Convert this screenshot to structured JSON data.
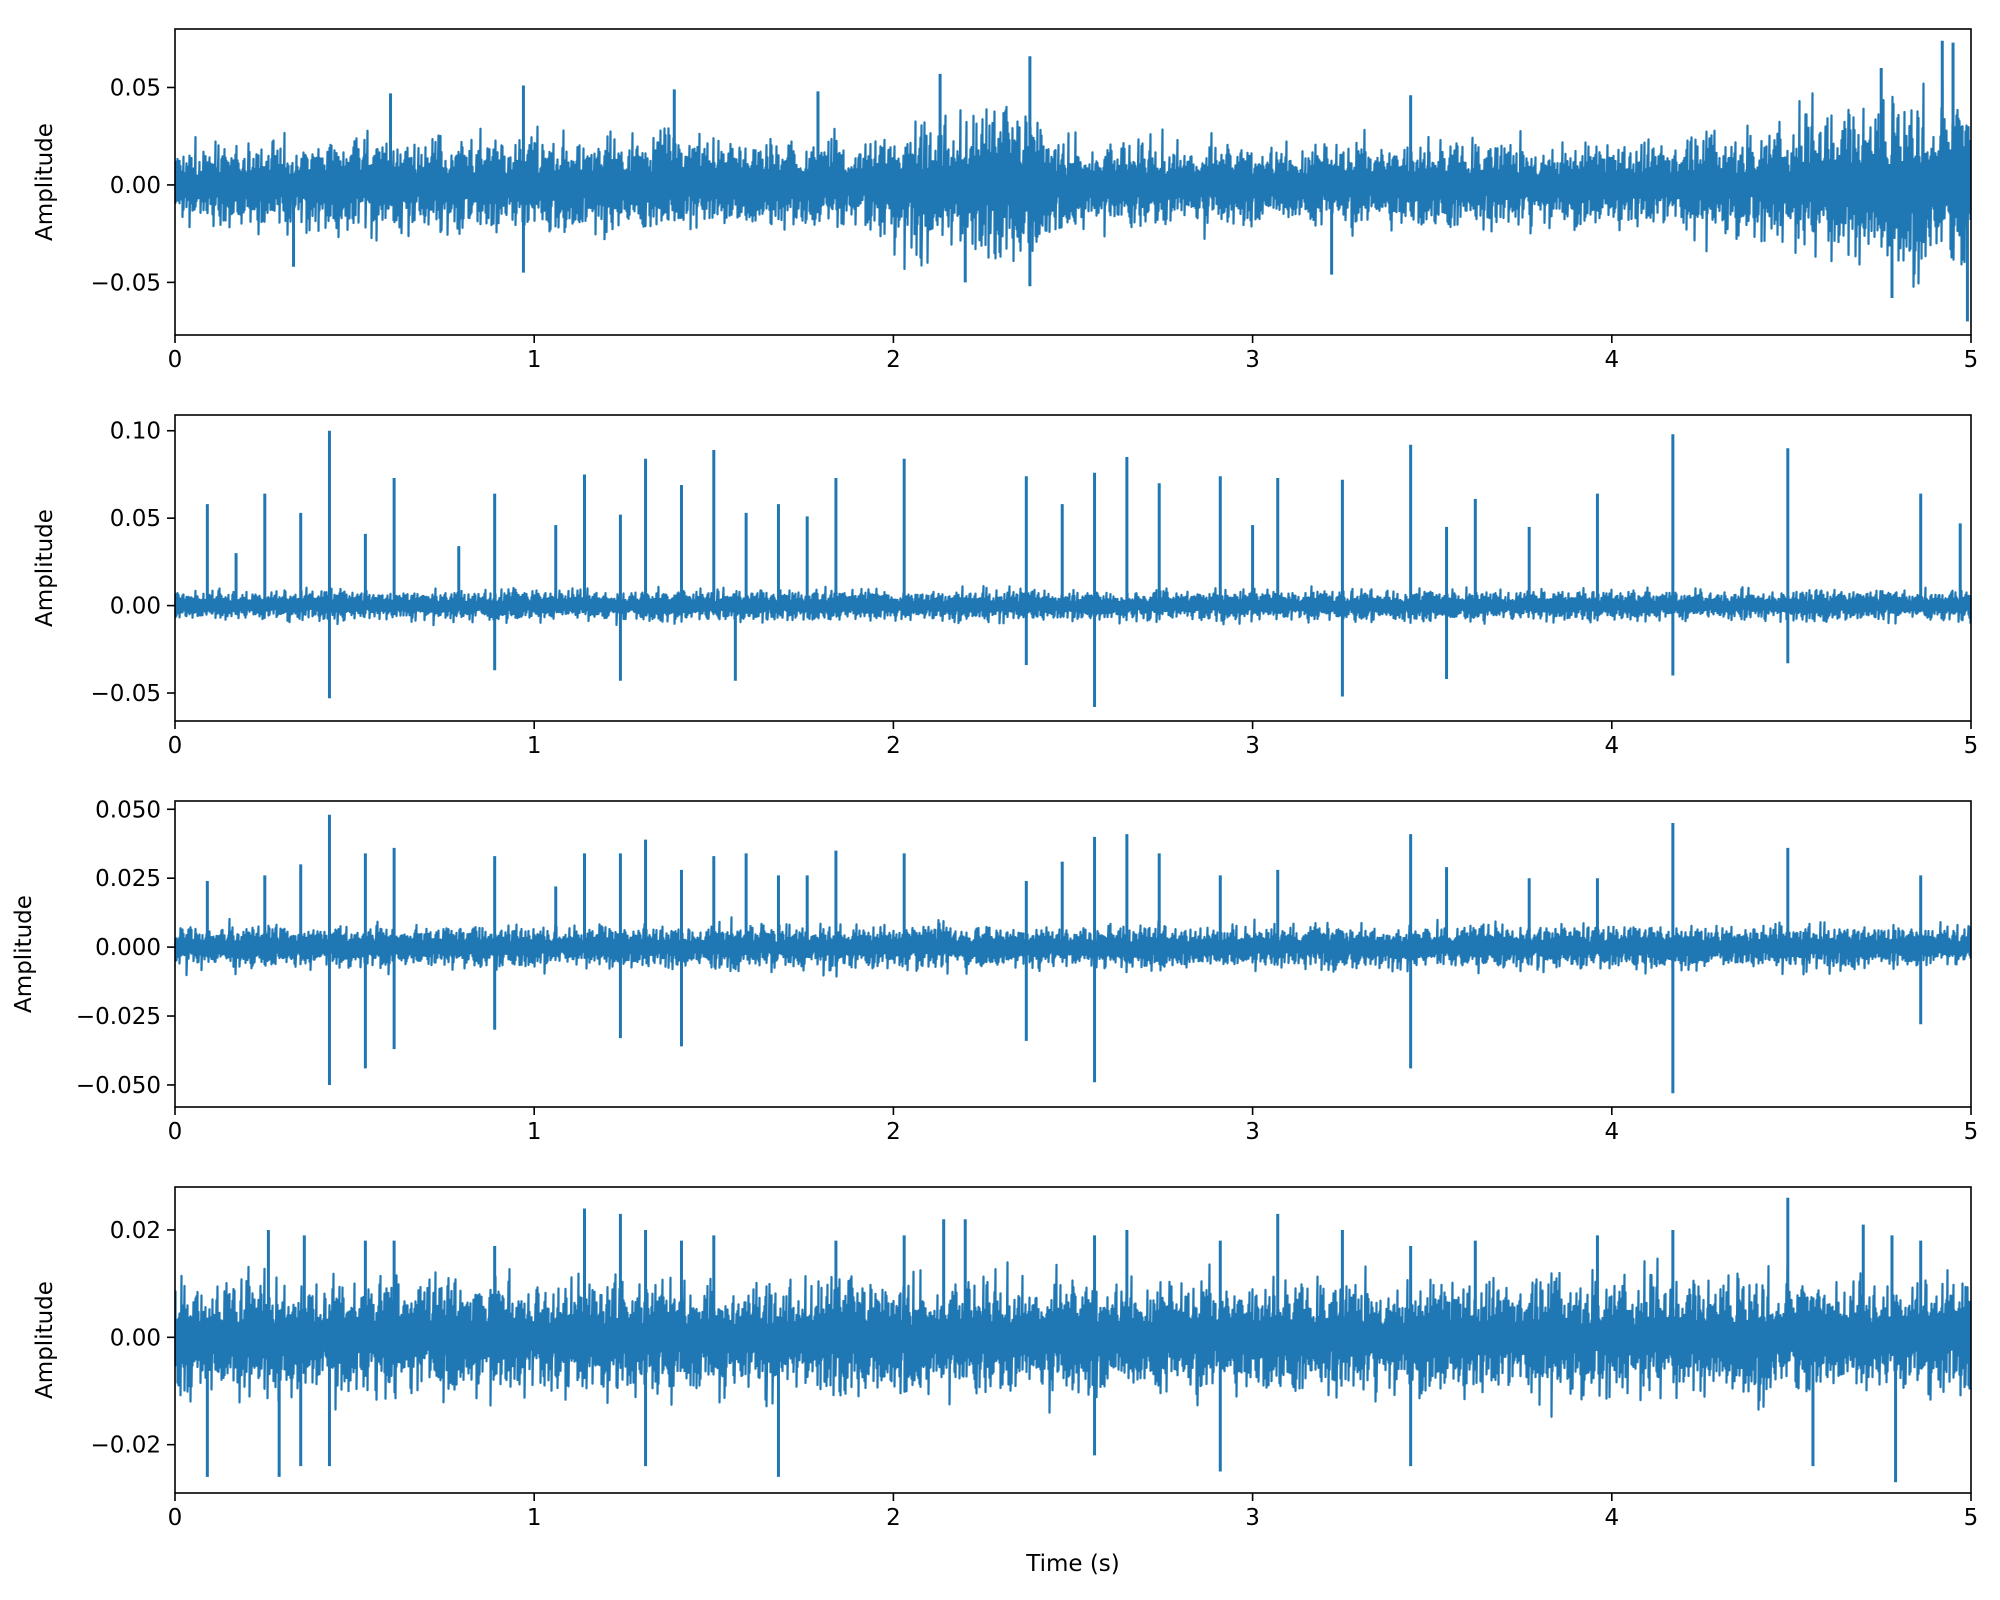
{
  "chart_data": [
    {
      "type": "line",
      "xlabel": "",
      "ylabel": "Amplitude",
      "xlim": [
        0,
        5
      ],
      "ylim": [
        -0.077,
        0.08
      ],
      "x_ticks": [
        "0",
        "1",
        "2",
        "3",
        "4",
        "5"
      ],
      "y_ticks": [
        {
          "value": -0.05,
          "label": "−0.05"
        },
        {
          "value": 0.0,
          "label": "0.00"
        },
        {
          "value": 0.05,
          "label": "0.05"
        }
      ],
      "color": "#1f77b4",
      "noise_envelope": [
        [
          0.0,
          0.02
        ],
        [
          0.5,
          0.024
        ],
        [
          1.0,
          0.026
        ],
        [
          1.5,
          0.025
        ],
        [
          1.95,
          0.024
        ],
        [
          2.05,
          0.035
        ],
        [
          2.4,
          0.04
        ],
        [
          2.45,
          0.024
        ],
        [
          3.0,
          0.021
        ],
        [
          3.5,
          0.024
        ],
        [
          4.0,
          0.022
        ],
        [
          4.4,
          0.027
        ],
        [
          4.65,
          0.04
        ],
        [
          5.0,
          0.045
        ]
      ],
      "peaks": [
        [
          0.6,
          0.047
        ],
        [
          0.97,
          0.051
        ],
        [
          1.39,
          0.049
        ],
        [
          1.79,
          0.048
        ],
        [
          2.13,
          0.057
        ],
        [
          2.38,
          0.066
        ],
        [
          3.44,
          0.046
        ],
        [
          4.75,
          0.06
        ],
        [
          4.92,
          0.074
        ],
        [
          4.95,
          0.073
        ]
      ],
      "troughs": [
        [
          0.33,
          -0.042
        ],
        [
          0.97,
          -0.045
        ],
        [
          2.2,
          -0.05
        ],
        [
          2.38,
          -0.052
        ],
        [
          3.22,
          -0.046
        ],
        [
          4.99,
          -0.07
        ],
        [
          4.78,
          -0.058
        ]
      ]
    },
    {
      "type": "line",
      "xlabel": "",
      "ylabel": "Amplitude",
      "xlim": [
        0,
        5
      ],
      "ylim": [
        -0.066,
        0.109
      ],
      "x_ticks": [
        "0",
        "1",
        "2",
        "3",
        "4",
        "5"
      ],
      "y_ticks": [
        {
          "value": -0.05,
          "label": "−0.05"
        },
        {
          "value": 0.0,
          "label": "0.00"
        },
        {
          "value": 0.05,
          "label": "0.05"
        },
        {
          "value": 0.1,
          "label": "0.10"
        }
      ],
      "color": "#1f77b4",
      "noise_envelope": [
        [
          0.0,
          0.009
        ],
        [
          5.0,
          0.009
        ]
      ],
      "peaks": [
        [
          0.09,
          0.058
        ],
        [
          0.17,
          0.03
        ],
        [
          0.25,
          0.064
        ],
        [
          0.35,
          0.053
        ],
        [
          0.43,
          0.1
        ],
        [
          0.53,
          0.041
        ],
        [
          0.61,
          0.073
        ],
        [
          0.79,
          0.034
        ],
        [
          0.89,
          0.064
        ],
        [
          1.06,
          0.046
        ],
        [
          1.14,
          0.075
        ],
        [
          1.24,
          0.052
        ],
        [
          1.31,
          0.084
        ],
        [
          1.41,
          0.069
        ],
        [
          1.5,
          0.089
        ],
        [
          1.59,
          0.053
        ],
        [
          1.68,
          0.058
        ],
        [
          1.76,
          0.051
        ],
        [
          1.84,
          0.073
        ],
        [
          2.03,
          0.084
        ],
        [
          2.37,
          0.074
        ],
        [
          2.47,
          0.058
        ],
        [
          2.56,
          0.076
        ],
        [
          2.65,
          0.085
        ],
        [
          2.74,
          0.07
        ],
        [
          2.91,
          0.074
        ],
        [
          3.0,
          0.046
        ],
        [
          3.07,
          0.073
        ],
        [
          3.25,
          0.072
        ],
        [
          3.44,
          0.092
        ],
        [
          3.54,
          0.045
        ],
        [
          3.62,
          0.061
        ],
        [
          3.77,
          0.045
        ],
        [
          3.96,
          0.064
        ],
        [
          4.17,
          0.098
        ],
        [
          4.49,
          0.09
        ],
        [
          4.86,
          0.064
        ],
        [
          4.97,
          0.047
        ]
      ],
      "troughs": [
        [
          0.43,
          -0.053
        ],
        [
          0.89,
          -0.037
        ],
        [
          1.24,
          -0.043
        ],
        [
          1.56,
          -0.043
        ],
        [
          2.37,
          -0.034
        ],
        [
          2.56,
          -0.058
        ],
        [
          3.25,
          -0.052
        ],
        [
          3.54,
          -0.042
        ],
        [
          4.17,
          -0.04
        ],
        [
          4.49,
          -0.033
        ]
      ]
    },
    {
      "type": "line",
      "xlabel": "",
      "ylabel": "Amplitude",
      "xlim": [
        0,
        5
      ],
      "ylim": [
        -0.058,
        0.053
      ],
      "x_ticks": [
        "0",
        "1",
        "2",
        "3",
        "4",
        "5"
      ],
      "y_ticks": [
        {
          "value": -0.05,
          "label": "−0.050"
        },
        {
          "value": -0.025,
          "label": "−0.025"
        },
        {
          "value": 0.0,
          "label": "0.000"
        },
        {
          "value": 0.025,
          "label": "0.025"
        },
        {
          "value": 0.05,
          "label": "0.050"
        }
      ],
      "color": "#1f77b4",
      "noise_envelope": [
        [
          0.0,
          0.008
        ],
        [
          5.0,
          0.008
        ]
      ],
      "peaks": [
        [
          0.09,
          0.024
        ],
        [
          0.25,
          0.026
        ],
        [
          0.35,
          0.03
        ],
        [
          0.43,
          0.048
        ],
        [
          0.53,
          0.034
        ],
        [
          0.61,
          0.036
        ],
        [
          0.89,
          0.033
        ],
        [
          1.06,
          0.022
        ],
        [
          1.14,
          0.034
        ],
        [
          1.24,
          0.034
        ],
        [
          1.31,
          0.039
        ],
        [
          1.41,
          0.028
        ],
        [
          1.5,
          0.033
        ],
        [
          1.59,
          0.034
        ],
        [
          1.68,
          0.026
        ],
        [
          1.76,
          0.026
        ],
        [
          1.84,
          0.035
        ],
        [
          2.03,
          0.034
        ],
        [
          2.37,
          0.024
        ],
        [
          2.47,
          0.031
        ],
        [
          2.56,
          0.04
        ],
        [
          2.65,
          0.041
        ],
        [
          2.74,
          0.034
        ],
        [
          2.91,
          0.026
        ],
        [
          3.07,
          0.028
        ],
        [
          3.44,
          0.041
        ],
        [
          3.54,
          0.029
        ],
        [
          3.77,
          0.025
        ],
        [
          3.96,
          0.025
        ],
        [
          4.17,
          0.045
        ],
        [
          4.49,
          0.036
        ],
        [
          4.86,
          0.026
        ]
      ],
      "troughs": [
        [
          0.43,
          -0.05
        ],
        [
          0.53,
          -0.044
        ],
        [
          0.61,
          -0.037
        ],
        [
          0.89,
          -0.03
        ],
        [
          1.24,
          -0.033
        ],
        [
          1.41,
          -0.036
        ],
        [
          2.37,
          -0.034
        ],
        [
          2.56,
          -0.049
        ],
        [
          3.44,
          -0.044
        ],
        [
          4.17,
          -0.053
        ],
        [
          4.86,
          -0.028
        ]
      ]
    },
    {
      "type": "line",
      "xlabel": "Time (s)",
      "ylabel": "Amplitude",
      "xlim": [
        0,
        5
      ],
      "ylim": [
        -0.029,
        0.028
      ],
      "x_ticks": [
        "0",
        "1",
        "2",
        "3",
        "4",
        "5"
      ],
      "y_ticks": [
        {
          "value": -0.02,
          "label": "−0.02"
        },
        {
          "value": 0.0,
          "label": "0.00"
        },
        {
          "value": 0.02,
          "label": "0.02"
        }
      ],
      "color": "#1f77b4",
      "noise_envelope": [
        [
          0.0,
          0.011
        ],
        [
          5.0,
          0.011
        ]
      ],
      "peaks": [
        [
          0.26,
          0.02
        ],
        [
          0.36,
          0.019
        ],
        [
          0.53,
          0.018
        ],
        [
          0.61,
          0.018
        ],
        [
          0.89,
          0.017
        ],
        [
          1.14,
          0.024
        ],
        [
          1.24,
          0.023
        ],
        [
          1.31,
          0.02
        ],
        [
          1.41,
          0.018
        ],
        [
          1.5,
          0.019
        ],
        [
          1.84,
          0.018
        ],
        [
          2.03,
          0.019
        ],
        [
          2.14,
          0.022
        ],
        [
          2.2,
          0.022
        ],
        [
          2.56,
          0.019
        ],
        [
          2.65,
          0.02
        ],
        [
          2.91,
          0.018
        ],
        [
          3.07,
          0.023
        ],
        [
          3.25,
          0.02
        ],
        [
          3.44,
          0.017
        ],
        [
          3.62,
          0.018
        ],
        [
          3.96,
          0.019
        ],
        [
          4.17,
          0.02
        ],
        [
          4.49,
          0.026
        ],
        [
          4.7,
          0.021
        ],
        [
          4.78,
          0.019
        ],
        [
          4.86,
          0.018
        ]
      ],
      "troughs": [
        [
          0.09,
          -0.026
        ],
        [
          0.29,
          -0.026
        ],
        [
          0.35,
          -0.024
        ],
        [
          0.43,
          -0.024
        ],
        [
          1.31,
          -0.024
        ],
        [
          1.68,
          -0.026
        ],
        [
          2.56,
          -0.022
        ],
        [
          2.91,
          -0.025
        ],
        [
          3.44,
          -0.024
        ],
        [
          4.56,
          -0.024
        ],
        [
          4.79,
          -0.027
        ]
      ]
    }
  ]
}
